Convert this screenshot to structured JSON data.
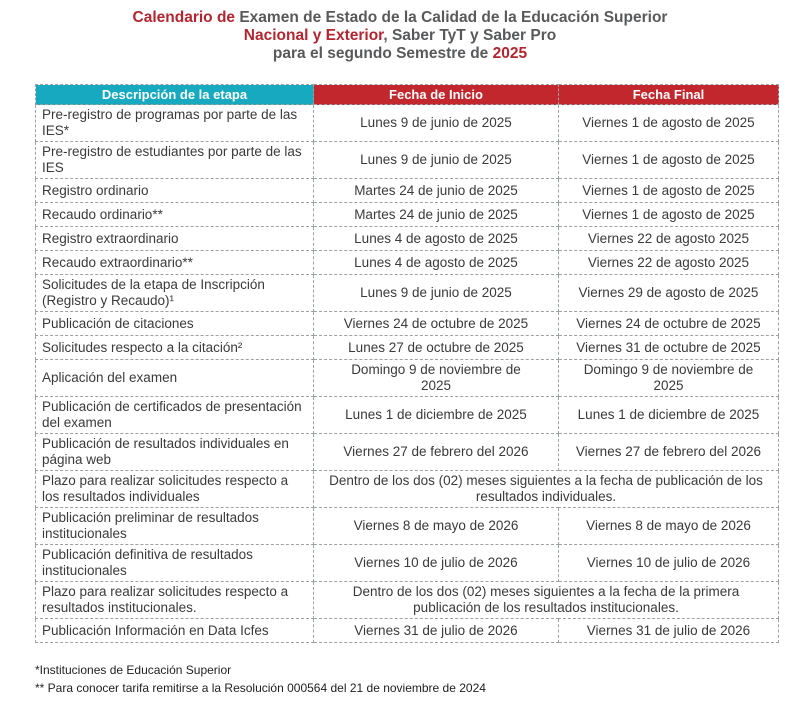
{
  "title": {
    "line1": [
      {
        "text": "Calendario de ",
        "color": "red"
      },
      {
        "text": "Examen de Estado de la Calidad de la Educación Superior",
        "color": "gray"
      }
    ],
    "line2": [
      {
        "text": "Nacional y Exterior",
        "color": "red"
      },
      {
        "text": ", Saber TyT y Saber Pro",
        "color": "gray"
      }
    ],
    "line3": [
      {
        "text": "para el segundo Semestre de ",
        "color": "gray"
      },
      {
        "text": "2025",
        "color": "red"
      }
    ]
  },
  "table": {
    "headers": {
      "etapa": "Descripción de la etapa",
      "inicio": "Fecha de Inicio",
      "final": "Fecha Final"
    },
    "rows": [
      {
        "etapa": "Pre-registro de programas por parte de las IES*",
        "inicio": "Lunes 9 de junio de 2025",
        "final": "Viernes 1 de agosto de 2025",
        "merged": false
      },
      {
        "etapa": "Pre-registro de estudiantes por parte de las IES",
        "inicio": "Lunes 9 de junio de 2025",
        "final": "Viernes 1 de agosto de 2025",
        "merged": false
      },
      {
        "etapa": "Registro ordinario",
        "inicio": "Martes 24 de junio de 2025",
        "final": "Viernes 1 de agosto de 2025",
        "merged": false
      },
      {
        "etapa": "Recaudo ordinario**",
        "inicio": "Martes 24 de junio de 2025",
        "final": "Viernes 1 de agosto de 2025",
        "merged": false
      },
      {
        "etapa": "Registro extraordinario",
        "inicio": "Lunes 4 de agosto de 2025",
        "final": "Viernes 22 de agosto 2025",
        "merged": false
      },
      {
        "etapa": "Recaudo extraordinario**",
        "inicio": "Lunes 4 de agosto de 2025",
        "final": "Viernes 22 de agosto 2025",
        "merged": false
      },
      {
        "etapa": "Solicitudes de la etapa de Inscripción (Registro y Recaudo)¹",
        "inicio": "Lunes 9 de junio de 2025",
        "final": "Viernes 29 de agosto de 2025",
        "merged": false
      },
      {
        "etapa": "Publicación de citaciones",
        "inicio": "Viernes 24 de octubre de 2025",
        "final": "Viernes 24 de octubre de 2025",
        "merged": false
      },
      {
        "etapa": "Solicitudes respecto a la citación²",
        "inicio": "Lunes 27 de octubre de 2025",
        "final": "Viernes 31 de octubre de 2025",
        "merged": false
      },
      {
        "etapa": "Aplicación del examen",
        "inicio": "Domingo 9 de noviembre de 2025",
        "final": "Domingo 9 de noviembre de 2025",
        "merged": false
      },
      {
        "etapa": "Publicación de certificados de presentación del examen",
        "inicio": "Lunes 1 de diciembre de 2025",
        "final": "Lunes 1 de diciembre de 2025",
        "merged": false
      },
      {
        "etapa": "Publicación de resultados individuales en página web",
        "inicio": "Viernes 27 de febrero del 2026",
        "final": "Viernes 27 de febrero del 2026",
        "merged": false
      },
      {
        "etapa": "Plazo para realizar solicitudes respecto a los resultados individuales",
        "span": "Dentro de los dos (02) meses siguientes a la fecha de publicación de los resultados individuales.",
        "merged": true
      },
      {
        "etapa": "Publicación preliminar de resultados institucionales",
        "inicio": "Viernes 8 de mayo de 2026",
        "final": "Viernes 8 de mayo de 2026",
        "merged": false
      },
      {
        "etapa": "Publicación definitiva de resultados institucionales",
        "inicio": "Viernes 10 de julio de 2026",
        "final": "Viernes 10 de julio de 2026",
        "merged": false
      },
      {
        "etapa": "Plazo para realizar solicitudes respecto a resultados institucionales.",
        "span": "Dentro de los dos (02) meses siguientes a la fecha de la primera publicación de los resultados institucionales.",
        "merged": true
      },
      {
        "etapa": "Publicación Información en Data Icfes",
        "inicio": "Viernes 31 de julio de 2026",
        "final": "Viernes 31 de julio de 2026",
        "merged": false
      }
    ]
  },
  "footnotes": [
    "*Instituciones de Educación Superior",
    "** Para conocer tarifa remitirse a la Resolución 000564 del 21 de noviembre de 2024"
  ],
  "colors": {
    "header_teal": "#17A9C0",
    "header_red": "#C2272E",
    "title_red": "#B22630",
    "title_gray": "#58595B",
    "border_gray": "#9BA1A6",
    "text_dark": "#3A3A3A"
  }
}
